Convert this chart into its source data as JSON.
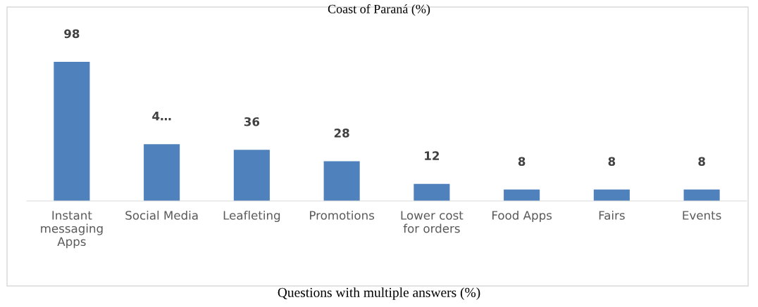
{
  "chart_data": {
    "type": "bar",
    "title": "Coast of Paraná (%)",
    "categories": [
      "Instant\nmessaging\nApps",
      "Social Media",
      "Leafleting",
      "Promotions",
      "Lower cost\nfor orders",
      "Food Apps",
      "Fairs",
      "Events"
    ],
    "values": [
      98,
      40,
      36,
      28,
      12,
      8,
      8,
      8
    ],
    "value_labels": [
      "98",
      "4…",
      "36",
      "28",
      "12",
      "8",
      "8",
      "8"
    ],
    "color": "#4f81bd",
    "grid": false,
    "legend": false,
    "annotations": [
      "Questions with multiple answers (%)"
    ]
  }
}
